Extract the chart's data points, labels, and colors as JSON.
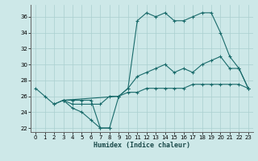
{
  "xlabel": "Humidex (Indice chaleur)",
  "xlim": [
    -0.5,
    23.5
  ],
  "ylim": [
    21.5,
    37.5
  ],
  "xticks": [
    0,
    1,
    2,
    3,
    4,
    5,
    6,
    7,
    8,
    9,
    10,
    11,
    12,
    13,
    14,
    15,
    16,
    17,
    18,
    19,
    20,
    21,
    22,
    23
  ],
  "yticks": [
    22,
    24,
    26,
    28,
    30,
    32,
    34,
    36
  ],
  "bg_color": "#cde8e8",
  "grid_color": "#aacfcf",
  "line_color": "#1a6b6b",
  "line1_x": [
    0,
    1,
    2,
    3,
    4,
    5,
    6,
    7,
    8
  ],
  "line1_y": [
    27,
    26,
    25,
    25.5,
    24.5,
    24,
    23,
    22,
    22
  ],
  "line2_x": [
    2,
    3,
    4,
    5,
    6,
    7,
    8,
    9,
    10,
    11,
    12,
    13,
    14,
    15,
    16,
    17,
    18,
    19,
    20,
    21,
    22,
    23
  ],
  "line2_y": [
    25,
    25.5,
    25.5,
    25.5,
    25.5,
    22,
    22,
    26,
    27,
    35.5,
    36.5,
    36,
    36.5,
    35.5,
    35.5,
    36,
    36.5,
    36.5,
    34,
    31,
    29.5,
    27
  ],
  "line3_x": [
    3,
    9,
    10,
    11,
    12,
    13,
    14,
    15,
    16,
    17,
    18,
    19,
    20,
    21,
    22,
    23
  ],
  "line3_y": [
    25.5,
    26,
    27,
    28.5,
    29,
    29.5,
    30,
    29,
    29.5,
    29,
    30,
    30.5,
    31,
    29.5,
    29.5,
    27
  ],
  "line4_x": [
    3,
    4,
    5,
    6,
    7,
    8,
    9,
    10,
    11,
    12,
    13,
    14,
    15,
    16,
    17,
    18,
    19,
    20,
    21,
    22,
    23
  ],
  "line4_y": [
    25.5,
    25,
    25,
    25,
    25,
    26,
    26,
    26.5,
    26.5,
    27,
    27,
    27,
    27,
    27,
    27.5,
    27.5,
    27.5,
    27.5,
    27.5,
    27.5,
    27
  ]
}
